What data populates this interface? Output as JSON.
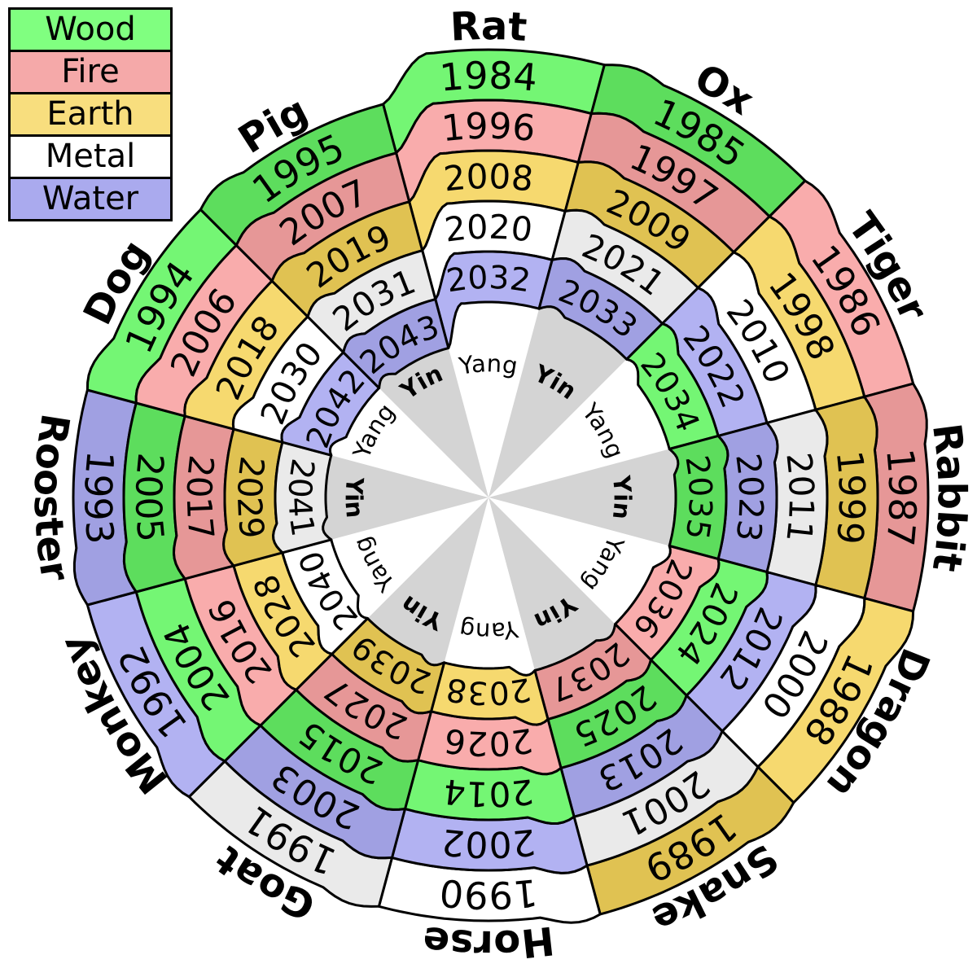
{
  "background": "#ffffff",
  "stroke_color": "#000000",
  "legend": {
    "items": [
      {
        "label": "Wood",
        "color": "#80ff80"
      },
      {
        "label": "Fire",
        "color": "#f5a9a9"
      },
      {
        "label": "Earth",
        "color": "#f8de7e"
      },
      {
        "label": "Metal",
        "color": "#ffffff"
      },
      {
        "label": "Water",
        "color": "#aaaaee"
      }
    ]
  },
  "wheel": {
    "center_labels": {
      "yang": "Yang",
      "yin": "Yin"
    },
    "polarity_wedge_colors": {
      "yang": "#ffffff",
      "yin": "#d4d4d4"
    },
    "element_colors": {
      "yang": {
        "Wood": "#74f674",
        "Fire": "#f9acac",
        "Earth": "#f6d96f",
        "Metal": "#ffffff",
        "Water": "#b2b2f2"
      },
      "yin": {
        "Wood": "#5ddd5d",
        "Fire": "#e69797",
        "Earth": "#e0c252",
        "Metal": "#eaeaea",
        "Water": "#a0a0e2"
      }
    },
    "sectors": [
      {
        "animal": "Rat",
        "polarity": "Yang",
        "years": [
          1984,
          1996,
          2008,
          2020,
          2032
        ],
        "elements": [
          "Wood",
          "Fire",
          "Earth",
          "Metal",
          "Water"
        ]
      },
      {
        "animal": "Ox",
        "polarity": "Yin",
        "years": [
          1985,
          1997,
          2009,
          2021,
          2033
        ],
        "elements": [
          "Wood",
          "Fire",
          "Earth",
          "Metal",
          "Water"
        ]
      },
      {
        "animal": "Tiger",
        "polarity": "Yang",
        "years": [
          1986,
          1998,
          2010,
          2022,
          2034
        ],
        "elements": [
          "Fire",
          "Earth",
          "Metal",
          "Water",
          "Wood"
        ]
      },
      {
        "animal": "Rabbit",
        "polarity": "Yin",
        "years": [
          1987,
          1999,
          2011,
          2023,
          2035
        ],
        "elements": [
          "Fire",
          "Earth",
          "Metal",
          "Water",
          "Wood"
        ]
      },
      {
        "animal": "Dragon",
        "polarity": "Yang",
        "years": [
          1988,
          2000,
          2012,
          2024,
          2036
        ],
        "elements": [
          "Earth",
          "Metal",
          "Water",
          "Wood",
          "Fire"
        ]
      },
      {
        "animal": "Snake",
        "polarity": "Yin",
        "years": [
          1989,
          2001,
          2013,
          2025,
          2037
        ],
        "elements": [
          "Earth",
          "Metal",
          "Water",
          "Wood",
          "Fire"
        ]
      },
      {
        "animal": "Horse",
        "polarity": "Yang",
        "years": [
          1990,
          2002,
          2014,
          2026,
          2038
        ],
        "elements": [
          "Metal",
          "Water",
          "Wood",
          "Fire",
          "Earth"
        ]
      },
      {
        "animal": "Goat",
        "polarity": "Yin",
        "years": [
          1991,
          2003,
          2015,
          2027,
          2039
        ],
        "elements": [
          "Metal",
          "Water",
          "Wood",
          "Fire",
          "Earth"
        ]
      },
      {
        "animal": "Monkey",
        "polarity": "Yang",
        "years": [
          1992,
          2004,
          2016,
          2028,
          2040
        ],
        "elements": [
          "Water",
          "Wood",
          "Fire",
          "Earth",
          "Metal"
        ]
      },
      {
        "animal": "Rooster",
        "polarity": "Yin",
        "years": [
          1993,
          2005,
          2017,
          2029,
          2041
        ],
        "elements": [
          "Water",
          "Wood",
          "Fire",
          "Earth",
          "Metal"
        ]
      },
      {
        "animal": "Dog",
        "polarity": "Yang",
        "years": [
          1994,
          2006,
          2018,
          2030,
          2042
        ],
        "elements": [
          "Wood",
          "Fire",
          "Earth",
          "Metal",
          "Water"
        ]
      },
      {
        "animal": "Pig",
        "polarity": "Yin",
        "years": [
          1995,
          2007,
          2019,
          2031,
          2043
        ],
        "elements": [
          "Wood",
          "Fire",
          "Earth",
          "Metal",
          "Water"
        ]
      }
    ]
  }
}
